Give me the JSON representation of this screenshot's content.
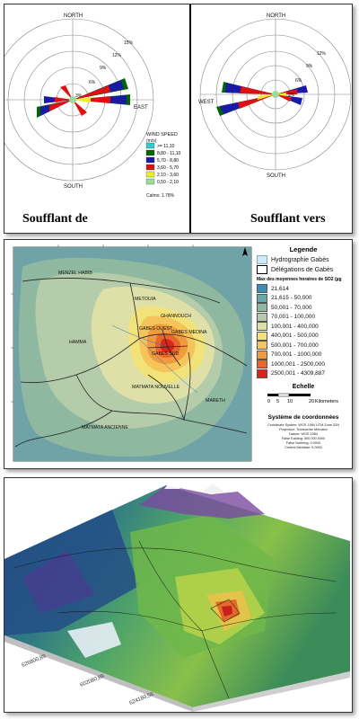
{
  "wind_rose": {
    "left": {
      "north": "NORTH",
      "south": "SOUTH",
      "east": "EAST",
      "rings": [
        "3%",
        "6%",
        "9%",
        "12%",
        "15%"
      ],
      "caption": "Soufflant de"
    },
    "right": {
      "north": "NORTH",
      "south": "SOUTH",
      "west": "WEST",
      "rings": [
        "3%",
        "6%",
        "9%",
        "12%"
      ],
      "caption": "Soufflant vers"
    },
    "speed_legend": {
      "title": "WIND SPEED",
      "unit": "(m/s)",
      "classes": [
        {
          "label": ">= 11,10",
          "color": "#33cccc"
        },
        {
          "label": "8,80 - 11,10",
          "color": "#006600"
        },
        {
          "label": "5,70 - 8,80",
          "color": "#1a1aa6"
        },
        {
          "label": "3,60 - 5,70",
          "color": "#dd1111"
        },
        {
          "label": "2,10 - 3,60",
          "color": "#eeee22"
        },
        {
          "label": "0,50 - 2,10",
          "color": "#99dd99"
        }
      ],
      "calms": "Calms: 1.78%"
    }
  },
  "so2_map": {
    "legend_title": "Legende",
    "layers": [
      "Hydrographie Gabès",
      "Délégations de Gabès"
    ],
    "classes_title": "Max des moyennes horaires de SO2 (µg",
    "classes": [
      {
        "label": "21,614",
        "color": "#3a8fb7"
      },
      {
        "label": "21,615 - 50,000",
        "color": "#69a8a8"
      },
      {
        "label": "50,001 - 70,000",
        "color": "#8fb8a0"
      },
      {
        "label": "70,001 - 100,000",
        "color": "#b5ccaa"
      },
      {
        "label": "100,001 - 400,000",
        "color": "#dfe0a8"
      },
      {
        "label": "400,001 - 500,000",
        "color": "#f2e27a"
      },
      {
        "label": "500,001 - 700,000",
        "color": "#f5c45a"
      },
      {
        "label": "700,001 - 1000,000",
        "color": "#f19a3e"
      },
      {
        "label": "1000,001 - 2500,000",
        "color": "#e8652e"
      },
      {
        "label": "2500,001 - 4309,887",
        "color": "#d9261c"
      }
    ],
    "scale_title": "Echelle",
    "scale_ticks": [
      "0",
      "5",
      "10",
      "20"
    ],
    "scale_unit": "Kilometers",
    "crs_title": "Système de coordonnées",
    "crs_lines": [
      "Coordinate System: WGS 1984 UTM Zone 32N",
      "Projection: Transverse Mercator",
      "Datum: WGS 1984",
      "False Easting: 500 000,0000",
      "False Northing: 0,0000",
      "Central Meridian: 9,0000"
    ],
    "places": {
      "menzel": "MENZEL HABIB",
      "metouia": "METOUIA",
      "ghannouch": "GHANNOUCH",
      "hamma": "HAMMA",
      "ouest": "GABES OUEST",
      "medina": "GABES MEDINA",
      "sud": "GABES SUD",
      "matmata_n": "MATMATA NOUVELLE",
      "mareth": "MARETH",
      "matmata_a": "MATMATA ANCIENNE"
    }
  },
  "terrain": {
    "axis_label_1": "626800,89",
    "axis_label_2": "602080,89",
    "axis_label_3": "624180,56"
  }
}
